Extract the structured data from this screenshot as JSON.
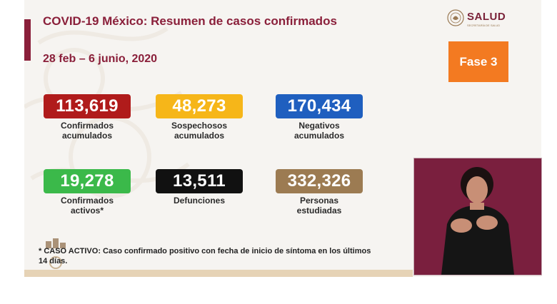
{
  "header": {
    "title": "COVID-19 México: Resumen de casos confirmados",
    "date_range": "28 feb – 6 junio, 2020"
  },
  "logo": {
    "name": "SALUD",
    "subtitle": "SECRETARÍA DE SALUD",
    "icon": "national-seal-icon"
  },
  "phase_badge": {
    "label": "Fase 3",
    "color": "#f37a21"
  },
  "stats": [
    {
      "value": "113,619",
      "label_line1": "Confirmados",
      "label_line2": "acumulados",
      "color": "#b01b1b"
    },
    {
      "value": "48,273",
      "label_line1": "Sospechosos",
      "label_line2": "acumulados",
      "color": "#f6b619"
    },
    {
      "value": "170,434",
      "label_line1": "Negativos",
      "label_line2": "acumulados",
      "color": "#1f5fbf"
    },
    {
      "value": "19,278",
      "label_line1": "Confirmados",
      "label_line2": "activos*",
      "color": "#3bb94a"
    },
    {
      "value": "13,511",
      "label_line1": "Defunciones",
      "label_line2": "",
      "color": "#111111"
    },
    {
      "value": "332,326",
      "label_line1": "Personas",
      "label_line2": "estudiadas",
      "color": "#9c7b52"
    }
  ],
  "footnote": {
    "text": "* CASO ACTIVO: Caso confirmado positivo con fecha de inicio de síntoma en los últimos 14 días."
  },
  "interpreter_video": {
    "icon": "sign-language-interpreter-video"
  }
}
